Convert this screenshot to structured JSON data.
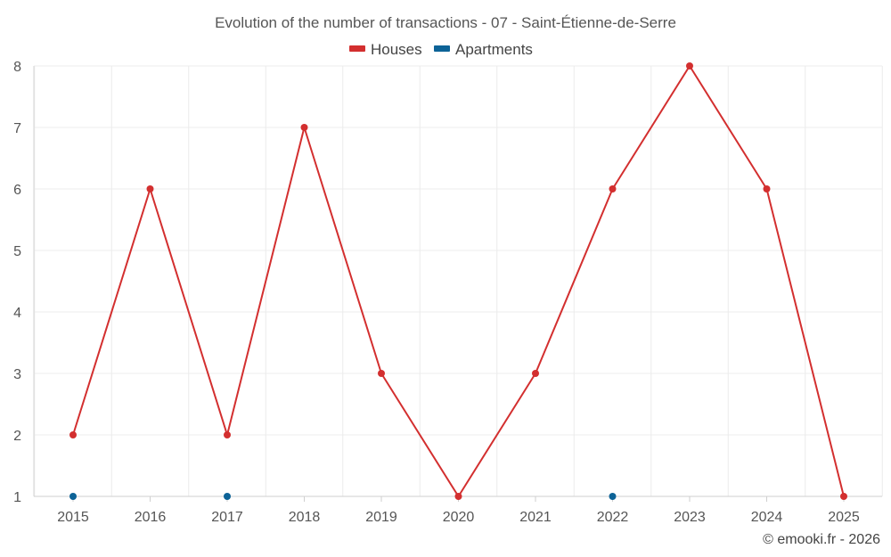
{
  "chart_data": {
    "type": "line",
    "title": "Evolution of the number of transactions - 07 - Saint-Étienne-de-Serre",
    "xlabel": "",
    "ylabel": "",
    "categories": [
      "2015",
      "2016",
      "2017",
      "2018",
      "2019",
      "2020",
      "2021",
      "2022",
      "2023",
      "2024",
      "2025"
    ],
    "y_ticks": [
      "1",
      "2",
      "3",
      "4",
      "5",
      "6",
      "7",
      "8"
    ],
    "ylim": [
      1,
      8
    ],
    "grid": true,
    "legend_position": "top-center",
    "series": [
      {
        "name": "Houses",
        "color": "#d32f2f",
        "values": [
          2,
          6,
          2,
          7,
          3,
          1,
          3,
          6,
          8,
          6,
          1
        ]
      },
      {
        "name": "Apartments",
        "color": "#0d6397",
        "values": [
          1,
          null,
          1,
          null,
          null,
          null,
          null,
          1,
          null,
          null,
          null
        ]
      }
    ],
    "credit": "© emooki.fr - 2026"
  }
}
